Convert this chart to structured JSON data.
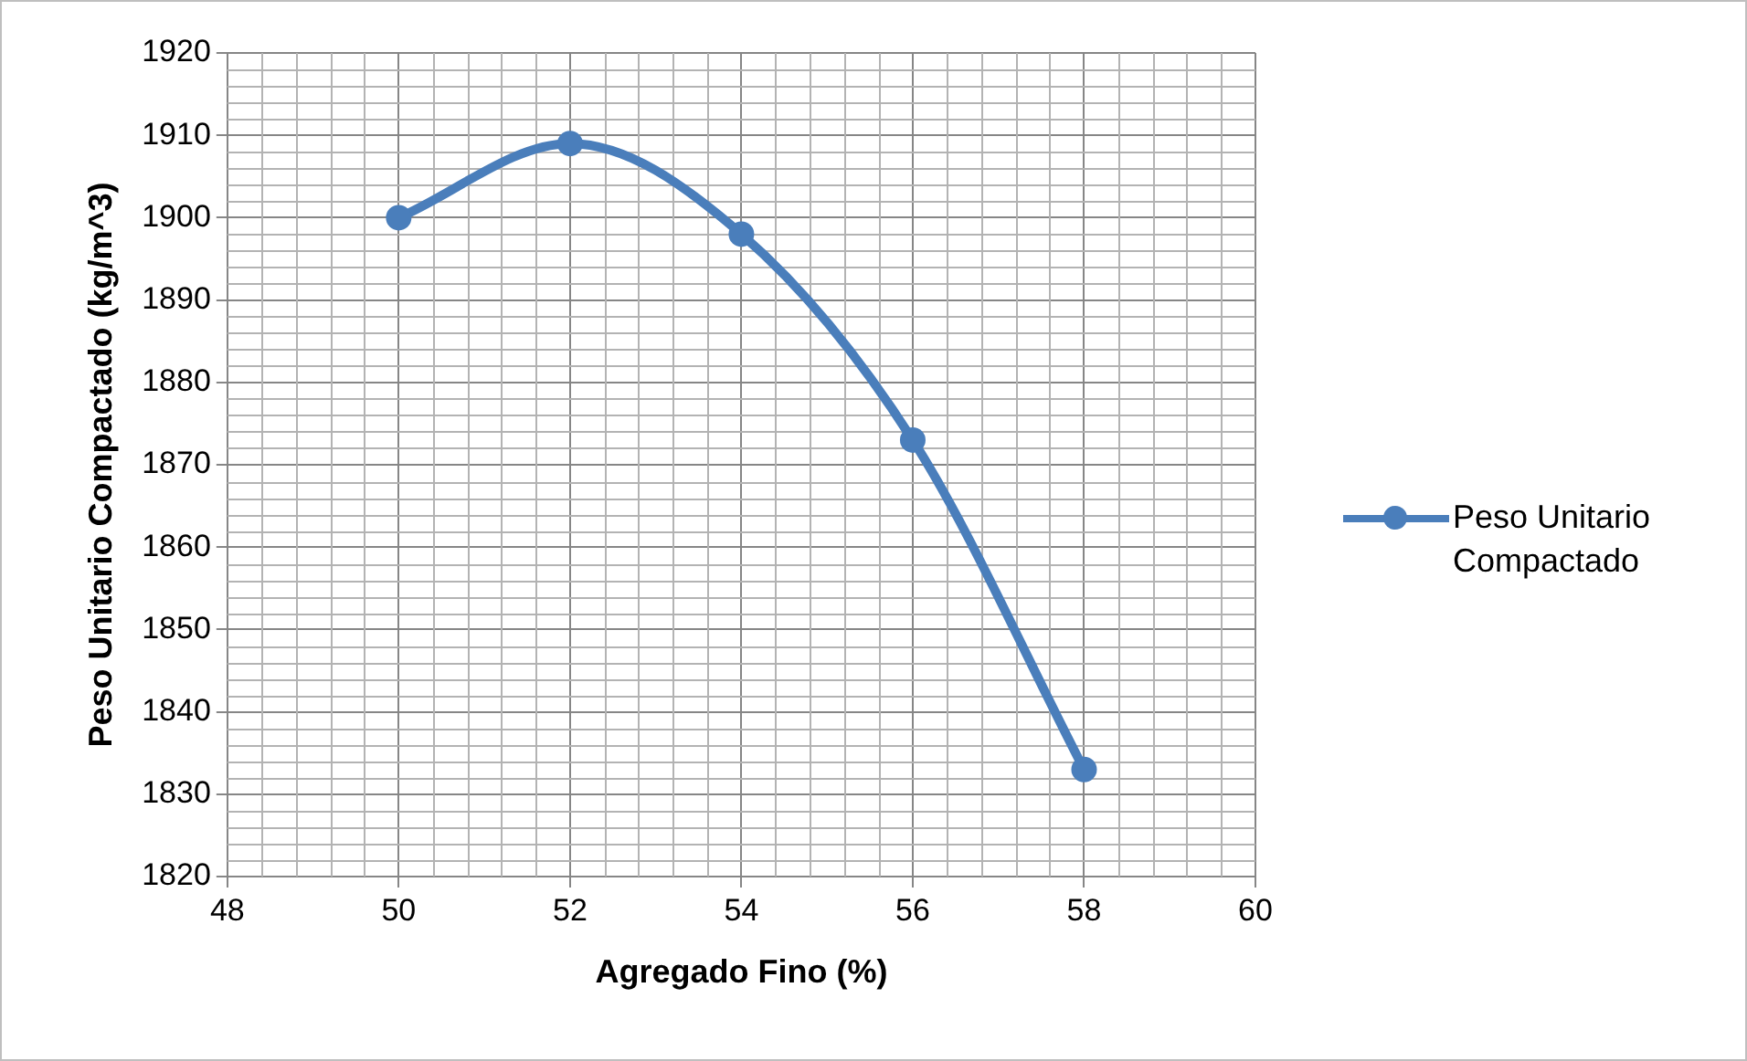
{
  "chart_data": {
    "type": "line",
    "xlabel": "Agregado Fino (%)",
    "ylabel": "Peso Unitario Compactado (kg/m^3)",
    "x": [
      50,
      52,
      54,
      56,
      58
    ],
    "series": [
      {
        "name": "Peso Unitario Compactado",
        "color": "#4a7ebb",
        "values": [
          1900,
          1909,
          1898,
          1873,
          1833
        ]
      }
    ],
    "xlim": [
      48,
      60
    ],
    "xticks": [
      48,
      50,
      52,
      54,
      56,
      58,
      60
    ],
    "ylim": [
      1820,
      1920
    ],
    "yticks": [
      1820,
      1830,
      1840,
      1850,
      1860,
      1870,
      1880,
      1890,
      1900,
      1910,
      1920
    ],
    "grid": true,
    "legend": "right",
    "marker": "circle",
    "line_style": "solid"
  }
}
